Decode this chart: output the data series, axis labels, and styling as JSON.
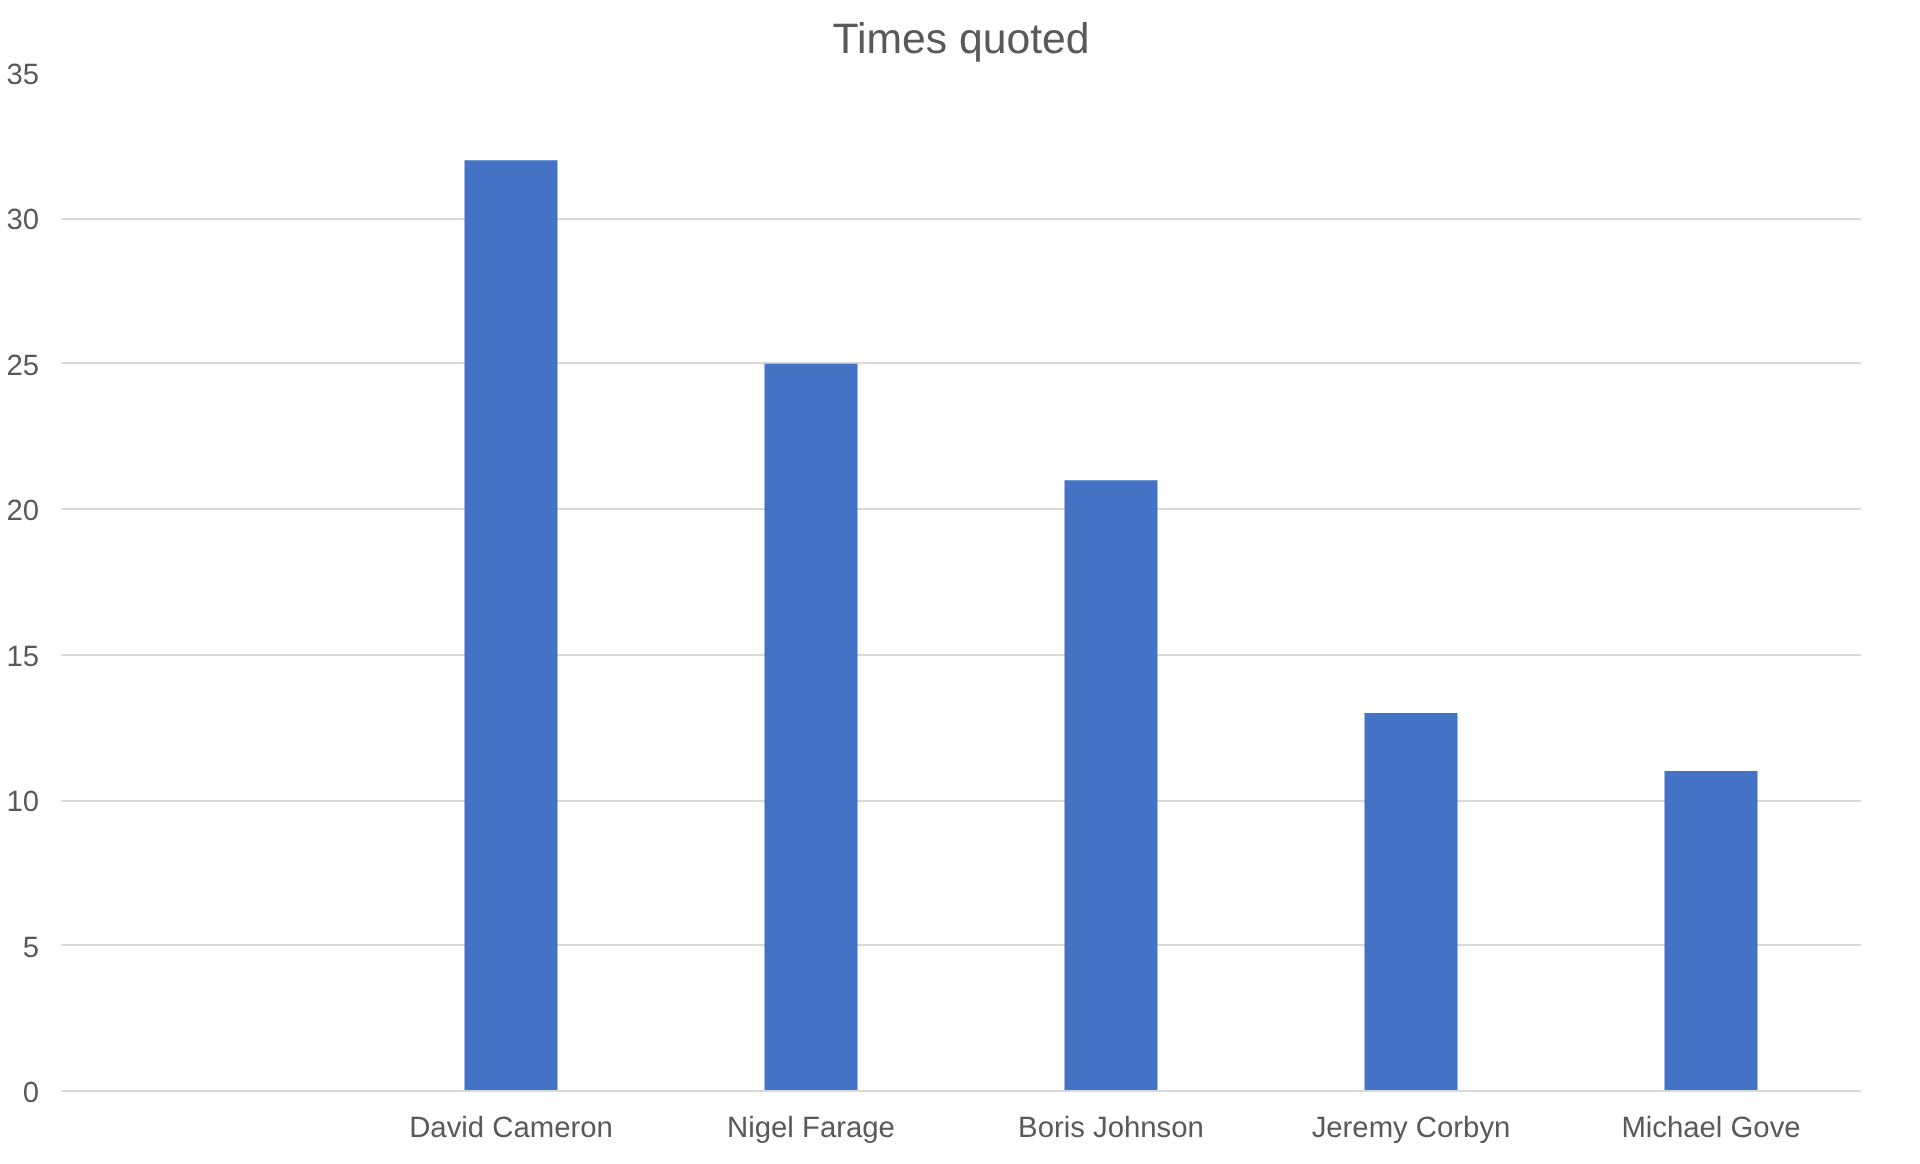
{
  "chart_data": {
    "type": "bar",
    "title": "Times quoted",
    "categories": [
      null,
      "David Cameron",
      "Nigel Farage",
      "Boris Johnson",
      "Jeremy Corbyn",
      "Michael Gove"
    ],
    "values": [
      null,
      32,
      25,
      21,
      13,
      11
    ],
    "color": "#4472c4",
    "ylim": [
      0,
      35
    ],
    "yticks": [
      0,
      5,
      10,
      15,
      20,
      25,
      30,
      35
    ],
    "grid": "y"
  }
}
